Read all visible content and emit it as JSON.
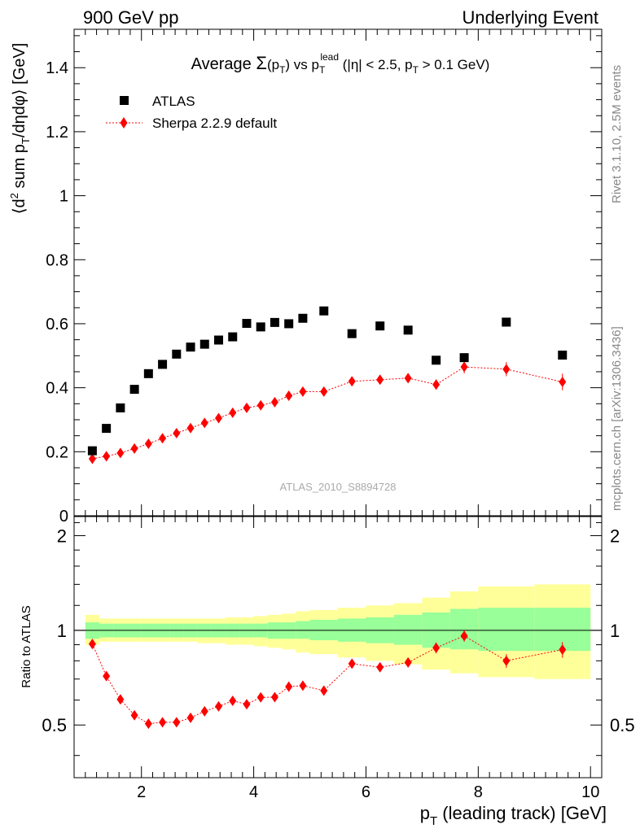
{
  "header": {
    "left": "900 GeV pp",
    "right": "Underlying Event"
  },
  "side_labels": {
    "rivet": "Rivet 3.1.10,  2.5M events",
    "mcplots": "mcplots.cern.ch [arXiv:1306.3436]"
  },
  "chart_data": [
    {
      "type": "scatter",
      "title_parts": {
        "prefix": "Average ",
        "sigma": "Σ",
        "pt_open": "(p",
        "pt_sub": "T",
        "pt_close": ")",
        "vs": " vs p",
        "vs_sub": "T",
        "vs_sup": "lead",
        "cuts_a": " (|η| < 2.5, p",
        "cuts_sub": "T",
        "cuts_b": " > 0.1 GeV)"
      },
      "ylabel_parts": {
        "a": "⟨d",
        "sup": "2",
        "b": " sum p",
        "sub": "T",
        "c": "/dηdφ⟩ [GeV]"
      },
      "watermark": "ATLAS_2010_S8894728",
      "xlim": [
        0.8,
        10.2
      ],
      "ylim": [
        0,
        1.52
      ],
      "y_ticks": [
        0,
        0.2,
        0.4,
        0.6,
        0.8,
        1,
        1.2,
        1.4
      ],
      "y_tick_labels": [
        "0",
        "0.2",
        "0.4",
        "0.6",
        "0.8",
        "1",
        "1.2",
        "1.4"
      ],
      "legend_position": "top-left",
      "series": [
        {
          "name": "ATLAS",
          "color": "#000000",
          "marker": "square",
          "x": [
            1.125,
            1.375,
            1.625,
            1.875,
            2.125,
            2.375,
            2.625,
            2.875,
            3.125,
            3.375,
            3.625,
            3.875,
            4.125,
            4.375,
            4.625,
            4.875,
            5.25,
            5.75,
            6.25,
            6.75,
            7.25,
            7.75,
            8.5,
            9.5
          ],
          "y": [
            0.203,
            0.273,
            0.337,
            0.395,
            0.444,
            0.473,
            0.505,
            0.527,
            0.536,
            0.549,
            0.559,
            0.601,
            0.59,
            0.604,
            0.6,
            0.617,
            0.64,
            0.569,
            0.593,
            0.58,
            0.486,
            0.494,
            0.605,
            0.502
          ]
        },
        {
          "name": "Sherpa 2.2.9 default",
          "color": "#ff0000",
          "marker": "diamond",
          "x": [
            1.125,
            1.375,
            1.625,
            1.875,
            2.125,
            2.375,
            2.625,
            2.875,
            3.125,
            3.375,
            3.625,
            3.875,
            4.125,
            4.375,
            4.625,
            4.875,
            5.25,
            5.75,
            6.25,
            6.75,
            7.25,
            7.75,
            8.5,
            9.5
          ],
          "y": [
            0.178,
            0.186,
            0.196,
            0.21,
            0.225,
            0.242,
            0.258,
            0.274,
            0.29,
            0.305,
            0.322,
            0.337,
            0.345,
            0.355,
            0.375,
            0.388,
            0.388,
            0.42,
            0.425,
            0.43,
            0.41,
            0.465,
            0.458,
            0.418
          ],
          "yerr": [
            0.004,
            0.004,
            0.004,
            0.004,
            0.004,
            0.004,
            0.005,
            0.005,
            0.005,
            0.005,
            0.006,
            0.006,
            0.006,
            0.007,
            0.007,
            0.008,
            0.008,
            0.01,
            0.011,
            0.014,
            0.016,
            0.02,
            0.022,
            0.026
          ]
        }
      ]
    },
    {
      "type": "scatter",
      "ylabel": "Ratio to ATLAS",
      "xlabel_parts": {
        "a": "p",
        "sub": "T",
        "b": " (leading track) [GeV]"
      },
      "xlim": [
        0.8,
        10.2
      ],
      "ylim": [
        0.34,
        2.3
      ],
      "x_ticks": [
        2,
        4,
        6,
        8,
        10
      ],
      "x_tick_labels": [
        "2",
        "4",
        "6",
        "8",
        "10"
      ],
      "y_ticks": [
        0.5,
        1,
        2
      ],
      "y_tick_labels": [
        "0.5",
        "1",
        "2"
      ],
      "reference_line": 1,
      "bands": {
        "bin_edges": [
          1.0,
          1.25,
          1.5,
          1.75,
          2.0,
          2.25,
          2.5,
          2.75,
          3.0,
          3.25,
          3.5,
          3.75,
          4.0,
          4.25,
          4.5,
          4.75,
          5.0,
          5.5,
          6.0,
          6.5,
          7.0,
          7.5,
          8.0,
          9.0,
          10.0
        ],
        "inner_color": "#99ff99",
        "outer_color": "#ffff99",
        "inner_lo": [
          0.94,
          0.95,
          0.95,
          0.95,
          0.95,
          0.95,
          0.95,
          0.95,
          0.95,
          0.95,
          0.95,
          0.95,
          0.95,
          0.94,
          0.94,
          0.94,
          0.93,
          0.92,
          0.91,
          0.9,
          0.88,
          0.87,
          0.86,
          0.86
        ],
        "inner_hi": [
          1.06,
          1.05,
          1.05,
          1.05,
          1.05,
          1.05,
          1.05,
          1.05,
          1.05,
          1.05,
          1.05,
          1.05,
          1.05,
          1.06,
          1.06,
          1.07,
          1.08,
          1.09,
          1.1,
          1.12,
          1.14,
          1.17,
          1.18,
          1.18
        ],
        "outer_lo": [
          0.9,
          0.92,
          0.92,
          0.92,
          0.92,
          0.92,
          0.92,
          0.92,
          0.91,
          0.91,
          0.9,
          0.9,
          0.89,
          0.88,
          0.87,
          0.85,
          0.84,
          0.82,
          0.8,
          0.78,
          0.75,
          0.73,
          0.71,
          0.7
        ],
        "outer_hi": [
          1.12,
          1.09,
          1.09,
          1.09,
          1.09,
          1.09,
          1.09,
          1.09,
          1.09,
          1.09,
          1.1,
          1.1,
          1.11,
          1.12,
          1.13,
          1.15,
          1.16,
          1.18,
          1.2,
          1.22,
          1.27,
          1.33,
          1.38,
          1.4
        ]
      },
      "series": [
        {
          "name": "Sherpa 2.2.9 default",
          "color": "#ff0000",
          "marker": "diamond",
          "x": [
            1.125,
            1.375,
            1.625,
            1.875,
            2.125,
            2.375,
            2.625,
            2.875,
            3.125,
            3.375,
            3.625,
            3.875,
            4.125,
            4.375,
            4.625,
            4.875,
            5.25,
            5.75,
            6.25,
            6.75,
            7.25,
            7.75,
            8.5,
            9.5
          ],
          "y": [
            0.905,
            0.715,
            0.603,
            0.537,
            0.505,
            0.51,
            0.51,
            0.527,
            0.553,
            0.573,
            0.597,
            0.582,
            0.612,
            0.613,
            0.662,
            0.667,
            0.643,
            0.783,
            0.763,
            0.79,
            0.88,
            0.96,
            0.8,
            0.868
          ],
          "yerr": [
            0.02,
            0.015,
            0.012,
            0.011,
            0.01,
            0.01,
            0.01,
            0.01,
            0.01,
            0.011,
            0.011,
            0.011,
            0.012,
            0.012,
            0.013,
            0.014,
            0.014,
            0.018,
            0.02,
            0.025,
            0.035,
            0.04,
            0.04,
            0.05
          ]
        }
      ]
    }
  ]
}
